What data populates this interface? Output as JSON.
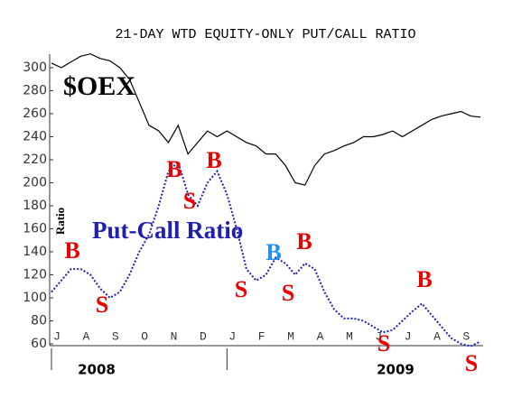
{
  "chart_data": {
    "type": "line",
    "title": "21-DAY WTD EQUITY-ONLY PUT/CALL RATIO",
    "y_label": "Ratio",
    "categories": [
      "J",
      null,
      null,
      "A",
      null,
      null,
      "S",
      null,
      null,
      "O",
      null,
      null,
      "N",
      null,
      null,
      "D",
      null,
      null,
      "J",
      null,
      null,
      "F",
      null,
      null,
      "M",
      null,
      null,
      "A",
      null,
      null,
      "M",
      null,
      null,
      "J",
      null,
      null,
      "J",
      null,
      null,
      "A",
      null,
      null,
      "S",
      null,
      null
    ],
    "year_labels": [
      "2008",
      "2009"
    ],
    "series": [
      {
        "name": "$OEX",
        "color": "#000000",
        "values": [
          304,
          300,
          305,
          310,
          312,
          308,
          306,
          300,
          290,
          270,
          250,
          245,
          235,
          250,
          225,
          235,
          245,
          240,
          245,
          240,
          235,
          232,
          225,
          225,
          215,
          200,
          198,
          215,
          225,
          228,
          232,
          235,
          240,
          240,
          242,
          245,
          240,
          245,
          250,
          255,
          258,
          260,
          262,
          258,
          257
        ]
      },
      {
        "name": "Put-Call Ratio",
        "color": "#2020b0",
        "values": [
          105,
          115,
          125,
          125,
          120,
          108,
          100,
          105,
          120,
          140,
          155,
          180,
          210,
          218,
          190,
          180,
          200,
          210,
          190,
          160,
          125,
          115,
          120,
          135,
          130,
          120,
          130,
          125,
          105,
          90,
          82,
          82,
          80,
          75,
          70,
          72,
          80,
          88,
          95,
          85,
          75,
          65,
          60,
          58,
          62
        ]
      }
    ],
    "annotations": [
      {
        "text": "B",
        "color": "#ee0000"
      },
      {
        "text": "S",
        "color": "#ee0000"
      },
      {
        "text": "B",
        "color": "#ee0000"
      },
      {
        "text": "S",
        "color": "#ee0000"
      },
      {
        "text": "B",
        "color": "#ee0000"
      },
      {
        "text": "S",
        "color": "#ee0000"
      },
      {
        "text": "B",
        "color": "#1e90ff"
      },
      {
        "text": "S",
        "color": "#ee0000"
      },
      {
        "text": "B",
        "color": "#ee0000"
      },
      {
        "text": "S",
        "color": "#ee0000"
      },
      {
        "text": "B",
        "color": "#ee0000"
      },
      {
        "text": "S",
        "color": "#ee0000"
      }
    ],
    "ylim": [
      60,
      310
    ],
    "yticks": [
      60,
      80,
      100,
      120,
      140,
      160,
      180,
      200,
      220,
      240,
      260,
      280,
      300
    ],
    "grid": false
  }
}
